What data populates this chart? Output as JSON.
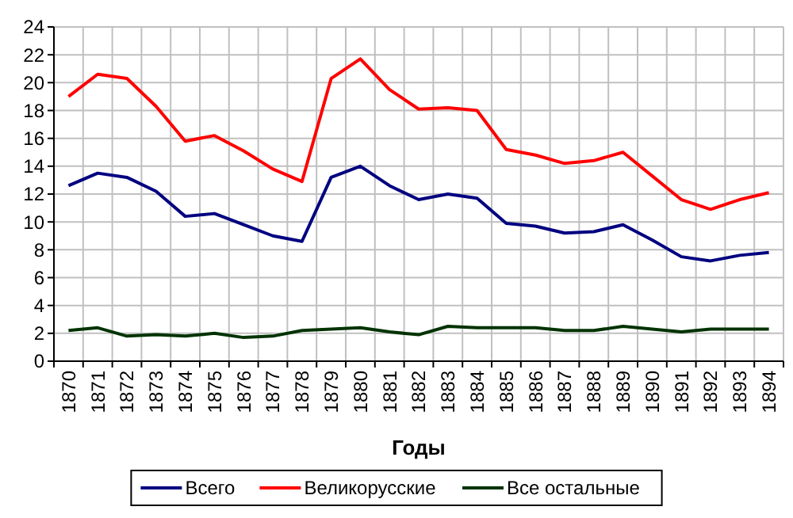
{
  "chart_data": {
    "type": "line",
    "xlabel": "Годы",
    "categories": [
      "1870",
      "1871",
      "1872",
      "1873",
      "1874",
      "1875",
      "1876",
      "1877",
      "1878",
      "1879",
      "1880",
      "1881",
      "1882",
      "1883",
      "1884",
      "1885",
      "1886",
      "1887",
      "1888",
      "1889",
      "1890",
      "1891",
      "1892",
      "1893",
      "1894"
    ],
    "series": [
      {
        "name": "Всего",
        "color": "#000080",
        "values": [
          12.6,
          13.5,
          13.2,
          12.2,
          10.4,
          10.6,
          9.8,
          9.0,
          8.6,
          13.2,
          14.0,
          12.6,
          11.6,
          12.0,
          11.7,
          9.9,
          9.7,
          9.2,
          9.3,
          9.8,
          8.7,
          7.5,
          7.2,
          7.6,
          7.8
        ]
      },
      {
        "name": "Великорусские",
        "color": "#ff0000",
        "values": [
          19.0,
          20.6,
          20.3,
          18.3,
          15.8,
          16.2,
          15.1,
          13.8,
          12.9,
          20.3,
          21.7,
          19.5,
          18.1,
          18.2,
          18.0,
          15.2,
          14.8,
          14.2,
          14.4,
          15.0,
          13.3,
          11.6,
          10.9,
          11.6,
          12.1
        ]
      },
      {
        "name": "Все остальные",
        "color": "#003300",
        "values": [
          2.2,
          2.4,
          1.8,
          1.9,
          1.8,
          2.0,
          1.7,
          1.8,
          2.2,
          2.3,
          2.4,
          2.1,
          1.9,
          2.5,
          2.4,
          2.4,
          2.4,
          2.2,
          2.2,
          2.5,
          2.3,
          2.1,
          2.3,
          2.3,
          2.3
        ]
      }
    ],
    "ylim": [
      0,
      24
    ],
    "yticks": [
      0,
      2,
      4,
      6,
      8,
      10,
      12,
      14,
      16,
      18,
      20,
      22,
      24
    ],
    "grid": true,
    "legend": "bottom",
    "marker": "none",
    "line_style": "solid"
  }
}
